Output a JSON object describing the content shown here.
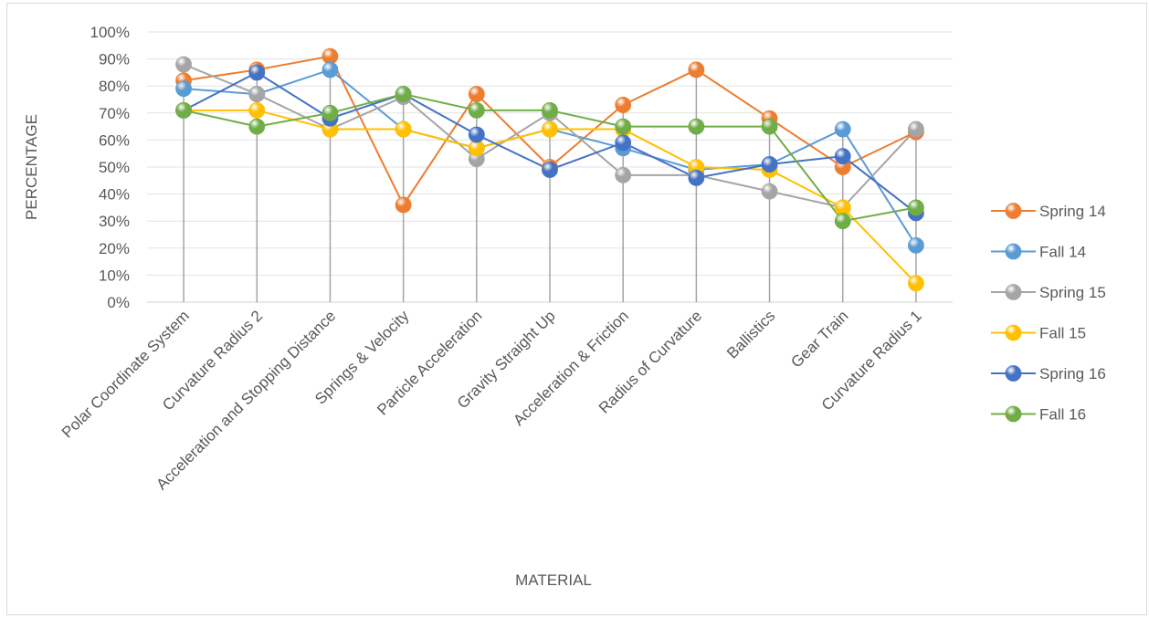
{
  "chart_data": {
    "type": "line",
    "title": "",
    "xlabel": "MATERIAL",
    "ylabel": "PERCENTAGE",
    "ylim": [
      0,
      100
    ],
    "y_ticks": [
      "0%",
      "10%",
      "20%",
      "30%",
      "40%",
      "50%",
      "60%",
      "70%",
      "80%",
      "90%",
      "100%"
    ],
    "grid": "horizontal",
    "drop_lines": true,
    "legend_position": "right",
    "categories": [
      "Polar Coordinate System",
      "Curvature Radius 2",
      "Acceleration and Stopping Distance",
      "Springs & Velocity",
      "Particle Acceleration",
      "Gravity Straight Up",
      "Acceleration & Friction",
      "Radius of Curvature",
      "Ballistics",
      "Gear Train",
      "Curvature Radius 1"
    ],
    "series": [
      {
        "name": "Spring 14",
        "color": "#ED7D31",
        "values": [
          82,
          86,
          91,
          36,
          77,
          50,
          73,
          86,
          68,
          50,
          63
        ]
      },
      {
        "name": "Fall 14",
        "color": "#5B9BD5",
        "values": [
          79,
          77,
          86,
          64,
          57,
          64,
          57,
          49,
          51,
          64,
          21
        ]
      },
      {
        "name": "Spring 15",
        "color": "#A5A5A5",
        "values": [
          88,
          77,
          64,
          76,
          53,
          70,
          47,
          47,
          41,
          35,
          64
        ]
      },
      {
        "name": "Fall 15",
        "color": "#FFC000",
        "values": [
          71,
          71,
          64,
          64,
          57,
          64,
          64,
          50,
          49,
          35,
          7
        ]
      },
      {
        "name": "Spring 16",
        "color": "#4472C4",
        "values": [
          71,
          85,
          68,
          77,
          62,
          49,
          59,
          46,
          51,
          54,
          33
        ]
      },
      {
        "name": "Fall 16",
        "color": "#70AD47",
        "values": [
          71,
          65,
          70,
          77,
          71,
          71,
          65,
          65,
          65,
          30,
          35
        ]
      }
    ]
  }
}
